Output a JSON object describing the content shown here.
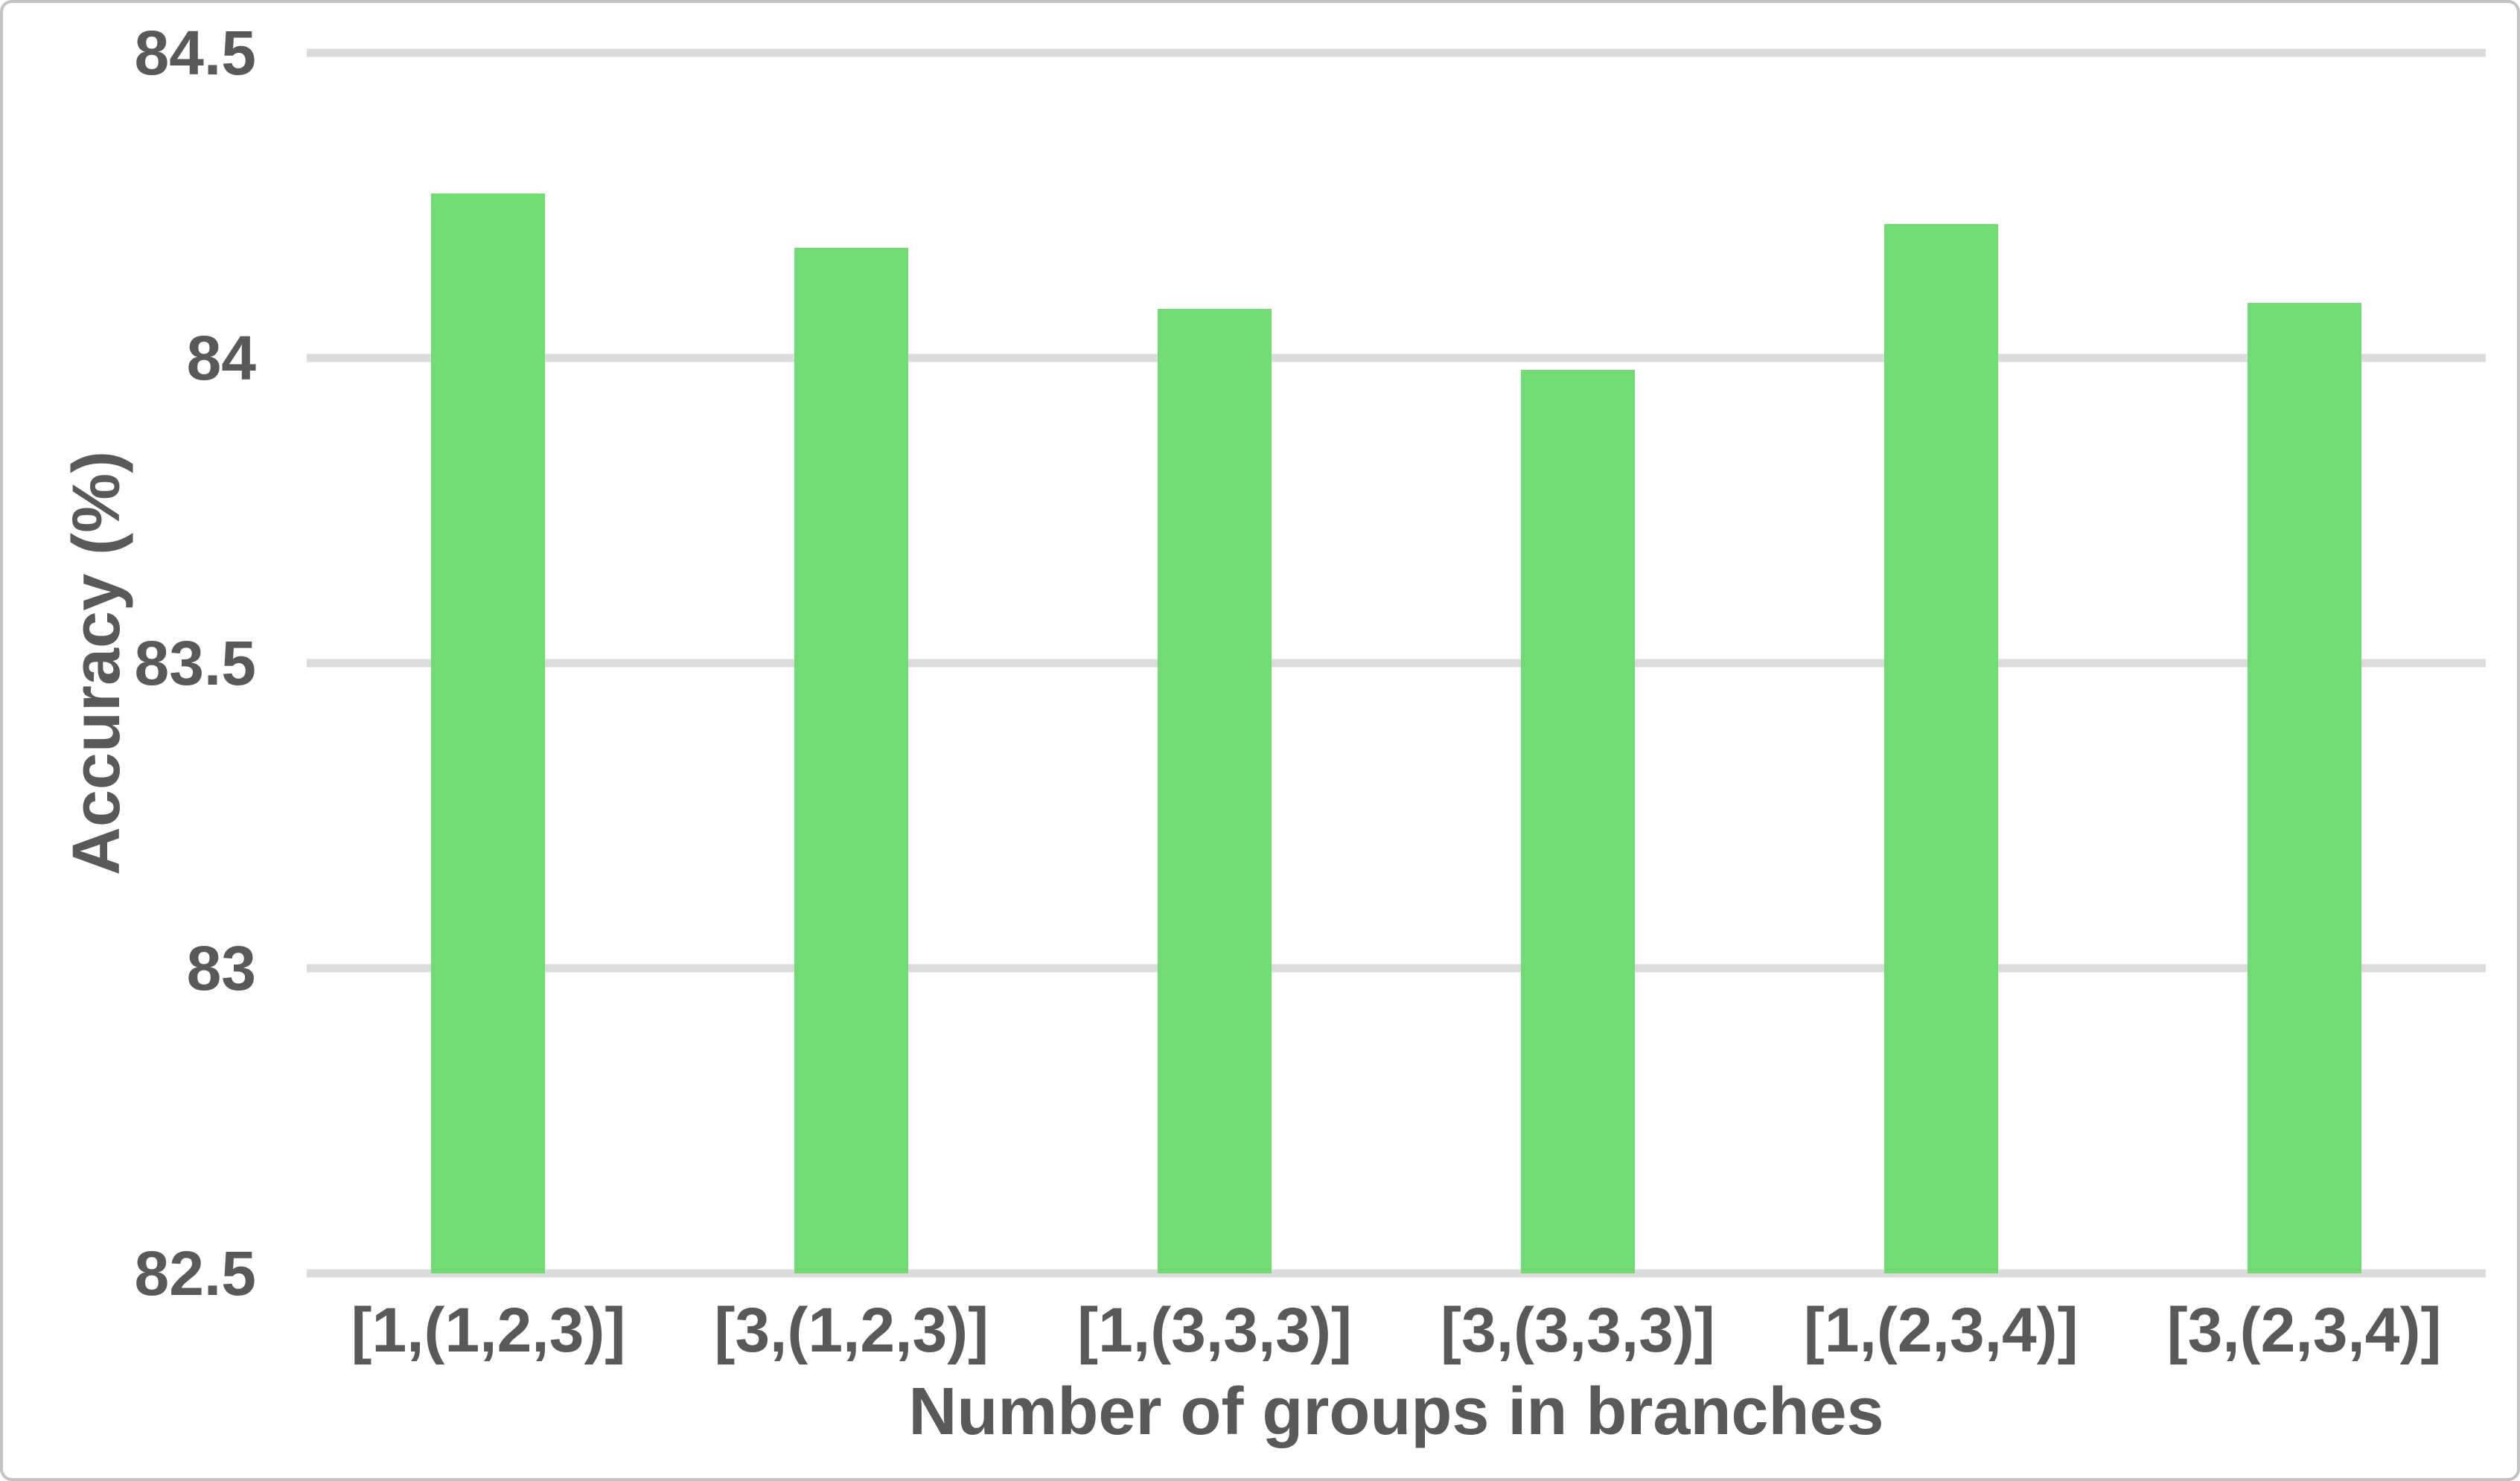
{
  "frame": {
    "background_color": "#ffffff",
    "border_color": "#c3c3c3"
  },
  "chart_data": {
    "type": "bar",
    "title": "",
    "xlabel": "Number of groups in branches",
    "ylabel": "Accuracy (%)",
    "categories": [
      "[1,(1,2,3)]",
      "[3,(1,2,3)]",
      "[1,(3,3,3)]",
      "[3,(3,3,3)]",
      "[1,(2,3,4)]",
      "[3,(2,3,4)]"
    ],
    "values": [
      84.27,
      84.18,
      84.08,
      83.98,
      84.22,
      84.09
    ],
    "ylim": [
      82.5,
      84.5
    ],
    "yticks": [
      84.5,
      84,
      83.5,
      83,
      82.5
    ],
    "ytick_labels": [
      "84.5",
      "84",
      "83.5",
      "83",
      "82.5"
    ],
    "grid": true,
    "legend": false,
    "bar_color": "#71dc73",
    "gridline_color": "#dbdbdb",
    "text_color": "#595959"
  }
}
